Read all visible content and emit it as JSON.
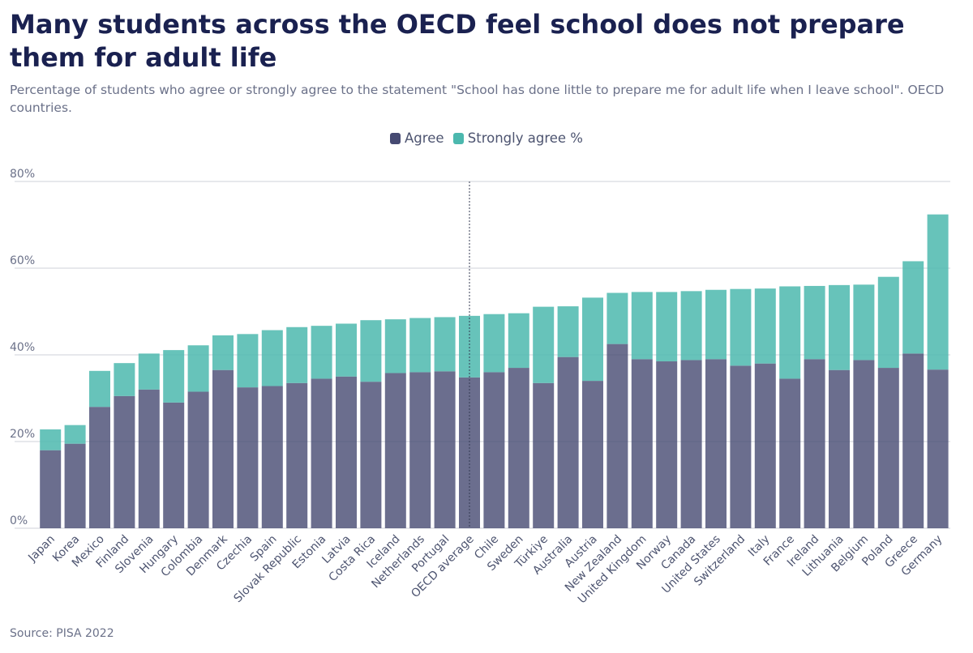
{
  "title": "Many students across the OECD feel school does not prepare them for adult life",
  "subtitle": "Percentage of students who agree or strongly agree to the statement \"School has done little to prepare me for adult life when I leave school\". OECD countries.",
  "source": "Source: PISA 2022",
  "colors": {
    "agree": "#464a72",
    "strongly_agree": "#4cb8ae"
  },
  "chart_data": {
    "type": "bar",
    "stacked": true,
    "categories": [
      "Japan",
      "Korea",
      "Mexico",
      "Finland",
      "Slovenia",
      "Hungary",
      "Colombia",
      "Denmark",
      "Czechia",
      "Spain",
      "Slovak Republic",
      "Estonia",
      "Latvia",
      "Costa Rica",
      "Iceland",
      "Netherlands",
      "Portugal",
      "OECD average",
      "Chile",
      "Sweden",
      "Türkiye",
      "Australia",
      "Austria",
      "New Zealand",
      "United Kingdom",
      "Norway",
      "Canada",
      "United States",
      "Switzerland",
      "Italy",
      "France",
      "Ireland",
      "Lithuania",
      "Belgium",
      "Poland",
      "Greece",
      "Germany"
    ],
    "series": [
      {
        "name": "Agree",
        "values": [
          18,
          19.5,
          28,
          30.5,
          32,
          29,
          31.5,
          36.5,
          32.5,
          32.8,
          33.5,
          34.5,
          35,
          33.8,
          35.8,
          36,
          36.2,
          34.8,
          36,
          37,
          33.5,
          39.5,
          34,
          42.5,
          39,
          38.5,
          38.8,
          39,
          37.5,
          38,
          34.5,
          39,
          36.5,
          38.8,
          37,
          40.3,
          36.6
        ]
      },
      {
        "name": "Strongly agree %",
        "values": [
          4.8,
          4.3,
          8.3,
          7.6,
          8.3,
          12.1,
          10.7,
          8,
          12.3,
          12.9,
          12.9,
          12.2,
          12.2,
          14.2,
          12.4,
          12.5,
          12.5,
          14.2,
          13.4,
          12.6,
          17.6,
          11.7,
          19.2,
          11.8,
          15.5,
          16,
          15.9,
          16,
          17.7,
          17.3,
          21.3,
          16.9,
          19.6,
          17.4,
          21,
          21.3,
          35.8
        ]
      }
    ],
    "legend": [
      "Agree",
      "Strongly agree %"
    ],
    "reference_line": "OECD average",
    "yticks": [
      "0%",
      "20%",
      "40%",
      "60%",
      "80%"
    ],
    "ylim": [
      0,
      80
    ],
    "grid": true,
    "xlabel": "",
    "ylabel": ""
  }
}
